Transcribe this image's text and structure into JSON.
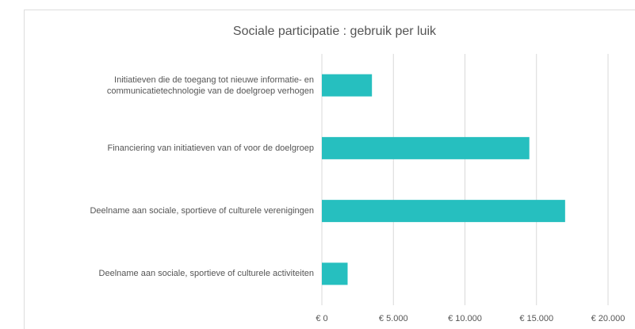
{
  "chart_data": {
    "type": "bar",
    "orientation": "horizontal",
    "title": "Sociale participatie : gebruik per luik",
    "categories": [
      "Initiatieven die de toegang tot nieuwe informatie- en communicatietechnologie van de doelgroep verhogen",
      "Financiering van initiatieven van of voor de doelgroep",
      "Deelname aan sociale, sportieve of culturele verenigingen",
      "Deelname aan sociale, sportieve of culturele activiteiten"
    ],
    "values": [
      3500,
      14500,
      17000,
      1800
    ],
    "color": "#26bfbf",
    "xlim": [
      0,
      20000
    ],
    "xticks": [
      {
        "value": 0,
        "label": "€ 0"
      },
      {
        "value": 5000,
        "label": "€ 5.000"
      },
      {
        "value": 10000,
        "label": "€ 10.000"
      },
      {
        "value": 15000,
        "label": "€ 15.000"
      },
      {
        "value": 20000,
        "label": "€ 20.000"
      }
    ],
    "grid": true
  }
}
